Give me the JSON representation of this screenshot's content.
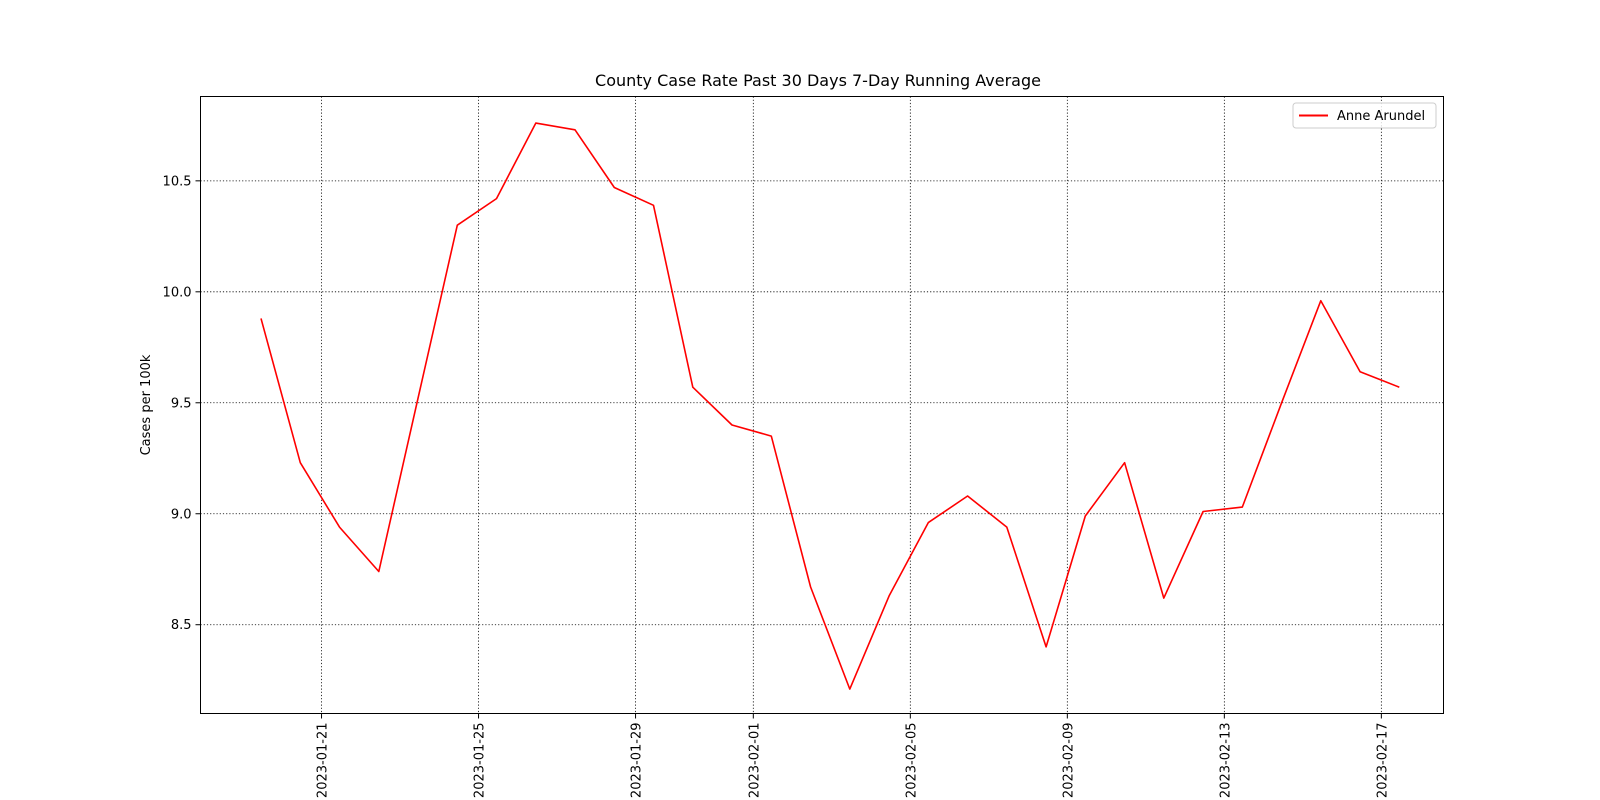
{
  "chart_data": {
    "type": "line",
    "title": "County Case Rate  Past 30 Days 7-Day Running Average",
    "xlabel": "",
    "ylabel": "Cases per 100k",
    "ylim": [
      8.1,
      10.88
    ],
    "xlim": [
      "2023-01-17T22:00",
      "2023-02-18T14:00"
    ],
    "grid": true,
    "legend_position": "top-right",
    "x_ticks": [
      "2023-01-21",
      "2023-01-25",
      "2023-01-29",
      "2023-02-01",
      "2023-02-05",
      "2023-02-09",
      "2023-02-13",
      "2023-02-17"
    ],
    "y_ticks": [
      "8.5",
      "9.0",
      "9.5",
      "10.0",
      "10.5"
    ],
    "series": [
      {
        "name": "Anne Arundel",
        "color": "#ff0000",
        "x": [
          "2023-01-19T11:00",
          "2023-01-20T11:00",
          "2023-01-21T11:00",
          "2023-01-22T11:00",
          "2023-01-23T11:00",
          "2023-01-24T11:00",
          "2023-01-25T11:00",
          "2023-01-26T11:00",
          "2023-01-27T11:00",
          "2023-01-28T11:00",
          "2023-01-29T11:00",
          "2023-01-30T11:00",
          "2023-01-31T11:00",
          "2023-02-01T11:00",
          "2023-02-02T11:00",
          "2023-02-03T11:00",
          "2023-02-04T11:00",
          "2023-02-05T11:00",
          "2023-02-06T11:00",
          "2023-02-07T11:00",
          "2023-02-08T11:00",
          "2023-02-09T11:00",
          "2023-02-10T11:00",
          "2023-02-11T11:00",
          "2023-02-12T11:00",
          "2023-02-13T11:00",
          "2023-02-14T11:00",
          "2023-02-15T11:00",
          "2023-02-16T11:00",
          "2023-02-17T11:00"
        ],
        "values": [
          9.88,
          9.23,
          8.94,
          8.74,
          9.52,
          10.3,
          10.42,
          10.76,
          10.73,
          10.47,
          10.39,
          9.57,
          9.4,
          9.35,
          8.67,
          8.21,
          8.63,
          8.96,
          9.08,
          8.94,
          8.4,
          8.99,
          9.23,
          8.62,
          9.01,
          9.03,
          9.5,
          9.96,
          9.64,
          9.57
        ]
      }
    ]
  }
}
